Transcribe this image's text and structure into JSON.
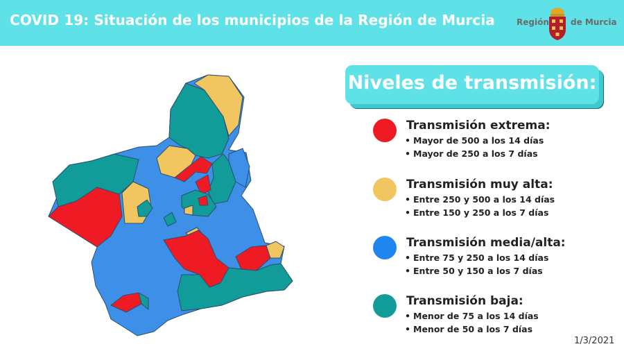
{
  "header": {
    "title": "COVID 19: Situación de los municipios de la Región de Murcia"
  },
  "logo": {
    "text_left": "Región",
    "text_right": "de Murcia",
    "icon": "coat-of-arms-icon"
  },
  "legend": {
    "title": "Niveles de transmisión:",
    "levels": [
      {
        "name": "Transmisión extrema:",
        "color": "#ee1b24",
        "lines": [
          "Mayor de 500 a los 14 días",
          "Mayor de 250 a los 7 días"
        ]
      },
      {
        "name": "Transmisión muy alta:",
        "color": "#f1c55f",
        "lines": [
          "Entre 250 y 500 a los 14 días",
          "Entre 150 y 250 a los 7 días"
        ]
      },
      {
        "name": "Transmisión media/alta:",
        "color": "#1f86ed",
        "lines": [
          "Entre 75 y 250 a los 14 días",
          "Entre 50 y 150 a los 7 días"
        ]
      },
      {
        "name": "Transmisión baja:",
        "color": "#119c99",
        "lines": [
          "Menor de 75 a los 14 días",
          "Menor de 50 a los 7 días"
        ]
      }
    ]
  },
  "colors": {
    "header_bg": "#5fe1e8",
    "blue_region": "#3d8fe8",
    "border": "#2a4f6e"
  },
  "date": "1/3/2021"
}
